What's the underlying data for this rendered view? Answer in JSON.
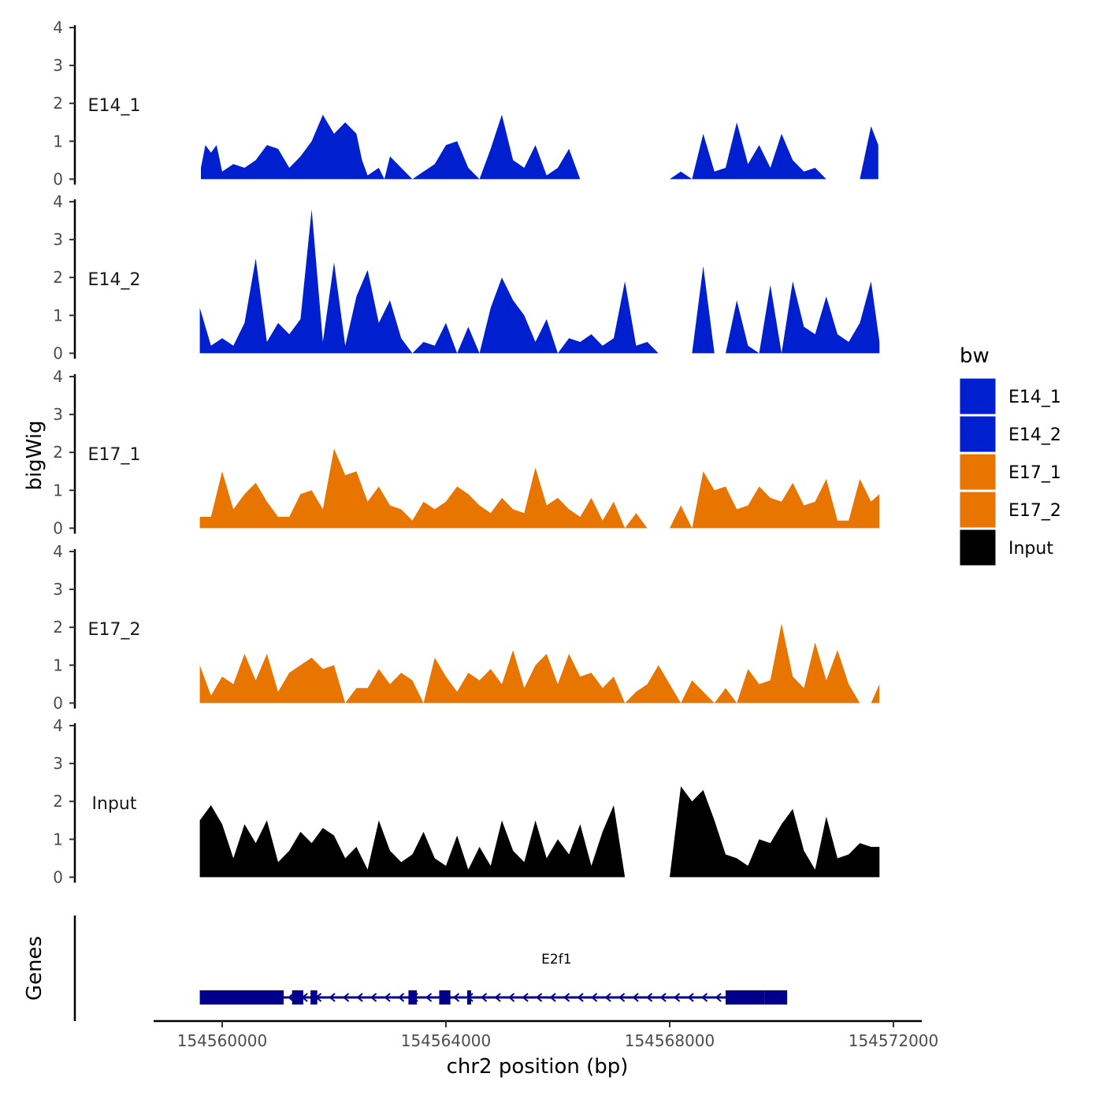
{
  "chart_data": {
    "type": "area",
    "title": "",
    "xlabel": "chr2 position (bp)",
    "ylabel": "bigWig",
    "genes_panel_label": "Genes",
    "x_range": [
      154559200,
      154572000
    ],
    "x_ticks": [
      154560000,
      154564000,
      154568000,
      154572000
    ],
    "x_tick_labels": [
      "154560000",
      "154564000",
      "154568000",
      "154572000"
    ],
    "y_range": [
      0,
      4
    ],
    "y_ticks": [
      0,
      1,
      2,
      3,
      4
    ],
    "y_tick_labels": [
      "0",
      "1",
      "2",
      "3",
      "4"
    ],
    "legend": {
      "title": "bw",
      "items": [
        {
          "label": "E14_1",
          "color": "#0020d0"
        },
        {
          "label": "E14_2",
          "color": "#0020d0"
        },
        {
          "label": "E17_1",
          "color": "#e87500"
        },
        {
          "label": "E17_2",
          "color": "#e87500"
        },
        {
          "label": "Input",
          "color": "#000000"
        }
      ]
    },
    "tracks": [
      {
        "name": "E14_1",
        "color": "#0020d0",
        "x": [
          154559620,
          154559700,
          154559800,
          154559900,
          154560000,
          154560200,
          154560400,
          154560600,
          154560800,
          154561000,
          154561200,
          154561400,
          154561600,
          154561800,
          154562000,
          154562200,
          154562400,
          154562500,
          154562600,
          154562800,
          154562900,
          154563000,
          154563200,
          154563400,
          154563600,
          154563800,
          154564000,
          154564200,
          154564400,
          154564600,
          154564800,
          154565000,
          154565200,
          154565400,
          154565600,
          154565800,
          154566000,
          154566200,
          154566400,
          154566600,
          154566800,
          154567000,
          154567200,
          154567400,
          154567600,
          154567800,
          154568000,
          154568200,
          154568400,
          154568600,
          154568800,
          154569000,
          154569200,
          154569400,
          154569600,
          154569800,
          154570000,
          154570200,
          154570400,
          154570600,
          154570800,
          154571000,
          154571200,
          154571400,
          154571600,
          154571730
        ],
        "y": [
          0.3,
          0.9,
          0.7,
          0.9,
          0.2,
          0.4,
          0.3,
          0.5,
          0.9,
          0.8,
          0.3,
          0.6,
          1.0,
          1.7,
          1.2,
          1.5,
          1.2,
          0.5,
          0.1,
          0.3,
          0.0,
          0.6,
          0.3,
          0.0,
          0.2,
          0.4,
          0.9,
          1.0,
          0.3,
          0.0,
          0.8,
          1.7,
          0.5,
          0.3,
          0.9,
          0.1,
          0.3,
          0.8,
          0.0,
          0.0,
          0.0,
          0.0,
          0.0,
          0.0,
          0.0,
          0.0,
          0.0,
          0.2,
          0.0,
          1.2,
          0.2,
          0.3,
          1.5,
          0.4,
          0.9,
          0.3,
          1.2,
          0.5,
          0.2,
          0.3,
          0.0,
          0.0,
          0.0,
          0.0,
          1.4,
          0.9
        ],
        "x_min": 154559620,
        "x_max": 154571730
      },
      {
        "name": "E14_2",
        "color": "#0020d0",
        "x": [
          154559600,
          154559800,
          154560000,
          154560200,
          154560400,
          154560600,
          154560800,
          154561000,
          154561200,
          154561400,
          154561600,
          154561800,
          154562000,
          154562200,
          154562400,
          154562600,
          154562800,
          154563000,
          154563200,
          154563400,
          154563600,
          154563800,
          154564000,
          154564200,
          154564400,
          154564600,
          154564800,
          154565000,
          154565200,
          154565400,
          154565600,
          154565800,
          154566000,
          154566200,
          154566400,
          154566600,
          154566800,
          154567000,
          154567200,
          154567400,
          154567600,
          154567800,
          154568000,
          154568200,
          154568400,
          154568600,
          154568800,
          154569000,
          154569200,
          154569400,
          154569600,
          154569800,
          154570000,
          154570200,
          154570400,
          154570600,
          154570800,
          154571000,
          154571200,
          154571400,
          154571600,
          154571750
        ],
        "y": [
          1.2,
          0.2,
          0.4,
          0.2,
          0.8,
          2.5,
          0.3,
          0.8,
          0.5,
          0.9,
          3.8,
          0.3,
          2.4,
          0.2,
          1.5,
          2.2,
          0.8,
          1.4,
          0.4,
          0.0,
          0.3,
          0.2,
          0.8,
          0.0,
          0.7,
          0.0,
          1.2,
          2.0,
          1.4,
          1.0,
          0.3,
          0.9,
          0.0,
          0.4,
          0.3,
          0.5,
          0.2,
          0.4,
          1.9,
          0.2,
          0.3,
          0.0,
          0.0,
          0.0,
          0.0,
          2.3,
          0.0,
          0.0,
          1.4,
          0.2,
          0.0,
          1.8,
          0.0,
          1.9,
          0.7,
          0.5,
          1.5,
          0.5,
          0.3,
          0.8,
          1.9,
          0.3
        ],
        "x_min": 154559600,
        "x_max": 154571750
      },
      {
        "name": "E17_1",
        "color": "#e87500",
        "x": [
          154559600,
          154559800,
          154560000,
          154560200,
          154560400,
          154560600,
          154560800,
          154561000,
          154561200,
          154561400,
          154561600,
          154561800,
          154562000,
          154562200,
          154562400,
          154562600,
          154562800,
          154563000,
          154563200,
          154563400,
          154563600,
          154563800,
          154564000,
          154564200,
          154564400,
          154564600,
          154564800,
          154565000,
          154565200,
          154565400,
          154565600,
          154565800,
          154566000,
          154566200,
          154566400,
          154566600,
          154566800,
          154567000,
          154567200,
          154567400,
          154567600,
          154567800,
          154568000,
          154568200,
          154568400,
          154568600,
          154568800,
          154569000,
          154569200,
          154569400,
          154569600,
          154569800,
          154570000,
          154570200,
          154570400,
          154570600,
          154570800,
          154571000,
          154571200,
          154571400,
          154571600,
          154571750
        ],
        "y": [
          0.3,
          0.3,
          1.5,
          0.5,
          0.9,
          1.2,
          0.7,
          0.3,
          0.3,
          0.9,
          1.0,
          0.5,
          2.1,
          1.4,
          1.5,
          0.7,
          1.1,
          0.6,
          0.5,
          0.2,
          0.7,
          0.5,
          0.7,
          1.1,
          0.9,
          0.6,
          0.4,
          0.8,
          0.5,
          0.4,
          1.6,
          0.6,
          0.8,
          0.5,
          0.3,
          0.8,
          0.2,
          0.7,
          0.0,
          0.4,
          0.0,
          0.0,
          0.0,
          0.6,
          0.0,
          1.5,
          1.0,
          1.1,
          0.5,
          0.6,
          1.1,
          0.8,
          0.7,
          1.2,
          0.6,
          0.7,
          1.3,
          0.2,
          0.2,
          1.3,
          0.7,
          0.9
        ],
        "x_min": 154559600,
        "x_max": 154571750
      },
      {
        "name": "E17_2",
        "color": "#e87500",
        "x": [
          154559600,
          154559800,
          154560000,
          154560200,
          154560400,
          154560600,
          154560800,
          154561000,
          154561200,
          154561400,
          154561600,
          154561800,
          154562000,
          154562200,
          154562400,
          154562600,
          154562800,
          154563000,
          154563200,
          154563400,
          154563600,
          154563800,
          154564000,
          154564200,
          154564400,
          154564600,
          154564800,
          154565000,
          154565200,
          154565400,
          154565600,
          154565800,
          154566000,
          154566200,
          154566400,
          154566600,
          154566800,
          154567000,
          154567200,
          154567400,
          154567600,
          154567800,
          154568000,
          154568200,
          154568400,
          154568600,
          154568800,
          154569000,
          154569200,
          154569400,
          154569600,
          154569800,
          154570000,
          154570200,
          154570400,
          154570600,
          154570800,
          154571000,
          154571200,
          154571400,
          154571600,
          154571750
        ],
        "y": [
          1.0,
          0.2,
          0.7,
          0.5,
          1.3,
          0.6,
          1.3,
          0.3,
          0.8,
          1.0,
          1.2,
          0.9,
          1.0,
          0.0,
          0.4,
          0.4,
          0.9,
          0.5,
          0.8,
          0.6,
          0.0,
          1.2,
          0.7,
          0.3,
          0.8,
          0.6,
          0.9,
          0.5,
          1.4,
          0.4,
          1.0,
          1.3,
          0.5,
          1.3,
          0.7,
          0.8,
          0.4,
          0.7,
          0.0,
          0.3,
          0.5,
          1.0,
          0.5,
          0.0,
          0.6,
          0.3,
          0.0,
          0.4,
          0.0,
          0.9,
          0.5,
          0.6,
          2.1,
          0.7,
          0.4,
          1.6,
          0.6,
          1.4,
          0.5,
          0.0,
          0.0,
          0.5
        ],
        "x_min": 154559600,
        "x_max": 154571750
      },
      {
        "name": "Input",
        "color": "#000000",
        "x": [
          154559600,
          154559800,
          154560000,
          154560200,
          154560400,
          154560600,
          154560800,
          154561000,
          154561200,
          154561400,
          154561600,
          154561800,
          154562000,
          154562200,
          154562400,
          154562600,
          154562800,
          154563000,
          154563200,
          154563400,
          154563600,
          154563800,
          154564000,
          154564200,
          154564400,
          154564600,
          154564800,
          154565000,
          154565200,
          154565400,
          154565600,
          154565800,
          154566000,
          154566200,
          154566400,
          154566600,
          154566800,
          154567000,
          154567200,
          154567400,
          154567600,
          154567800,
          154568000,
          154568200,
          154568400,
          154568600,
          154568800,
          154569000,
          154569200,
          154569400,
          154569600,
          154569800,
          154570000,
          154570200,
          154570400,
          154570600,
          154570800,
          154571000,
          154571200,
          154571400,
          154571600,
          154571750
        ],
        "y": [
          1.5,
          1.9,
          1.4,
          0.5,
          1.4,
          0.9,
          1.5,
          0.4,
          0.7,
          1.2,
          0.9,
          1.3,
          1.1,
          0.5,
          0.8,
          0.2,
          1.5,
          0.7,
          0.4,
          0.6,
          1.2,
          0.5,
          0.3,
          1.1,
          0.2,
          0.8,
          0.3,
          1.5,
          0.7,
          0.4,
          1.5,
          0.5,
          1.0,
          0.6,
          1.4,
          0.3,
          1.2,
          1.9,
          0.0,
          0.0,
          0.0,
          0.0,
          0.0,
          2.4,
          2.0,
          2.3,
          1.5,
          0.6,
          0.5,
          0.3,
          1.0,
          0.9,
          1.4,
          1.8,
          0.7,
          0.2,
          1.6,
          0.5,
          0.6,
          0.9,
          0.8,
          0.8
        ],
        "x_min": 154559600,
        "x_max": 154571750
      }
    ],
    "genes": [
      {
        "name": "E2f1",
        "start": 154559600,
        "end": 154570100,
        "strand": "-",
        "exons": [
          [
            154559600,
            154561100
          ],
          [
            154561250,
            154561450
          ],
          [
            154561580,
            154561700
          ],
          [
            154563330,
            154563480
          ],
          [
            154563880,
            154564080
          ],
          [
            154564380,
            154564450
          ],
          [
            154569000,
            154569700
          ],
          [
            154569700,
            154570100
          ]
        ]
      }
    ]
  }
}
